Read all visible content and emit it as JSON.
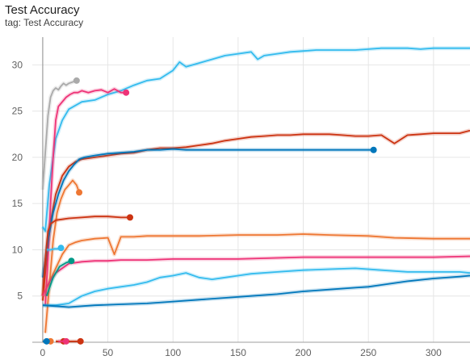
{
  "chart_data": {
    "type": "line",
    "title": "Test Accuracy",
    "subtitle": "tag: Test Accuracy",
    "xlabel": "",
    "ylabel": "",
    "xlim": [
      -8,
      328
    ],
    "ylim": [
      0,
      33
    ],
    "x_ticks": [
      0,
      50,
      100,
      150,
      200,
      250,
      300
    ],
    "y_ticks": [
      5,
      10,
      15,
      20,
      25,
      30
    ],
    "grid": true,
    "series": [
      {
        "color": "#33bbee",
        "end_marker": false,
        "x": [
          0,
          2,
          5,
          10,
          15,
          20,
          30,
          40,
          50,
          60,
          70,
          80,
          90,
          100,
          105,
          110,
          120,
          130,
          140,
          150,
          160,
          165,
          170,
          180,
          190,
          200,
          210,
          220,
          230,
          240,
          250,
          260,
          270,
          280,
          290,
          300,
          310,
          320,
          328
        ],
        "y": [
          12.5,
          12.0,
          17.0,
          22.0,
          24.0,
          25.2,
          26.0,
          26.2,
          26.8,
          27.2,
          27.8,
          28.3,
          28.5,
          29.4,
          30.3,
          29.8,
          30.2,
          30.6,
          31.0,
          31.2,
          31.4,
          30.6,
          31.0,
          31.2,
          31.4,
          31.5,
          31.6,
          31.6,
          31.6,
          31.6,
          31.7,
          31.8,
          31.8,
          31.8,
          31.7,
          31.8,
          31.8,
          31.8,
          31.8
        ]
      },
      {
        "color": "#cc3311",
        "end_marker": false,
        "x": [
          0,
          3,
          6,
          10,
          15,
          20,
          25,
          30,
          40,
          50,
          60,
          70,
          80,
          90,
          100,
          110,
          120,
          130,
          140,
          150,
          160,
          170,
          180,
          190,
          200,
          210,
          220,
          230,
          240,
          250,
          260,
          270,
          280,
          290,
          300,
          310,
          320,
          328
        ],
        "y": [
          4.5,
          9.0,
          13.0,
          16.0,
          18.0,
          19.0,
          19.5,
          19.8,
          20.0,
          20.2,
          20.4,
          20.5,
          20.8,
          21.0,
          21.0,
          21.1,
          21.3,
          21.5,
          21.8,
          22.0,
          22.2,
          22.3,
          22.4,
          22.4,
          22.5,
          22.5,
          22.5,
          22.4,
          22.3,
          22.3,
          22.4,
          21.5,
          22.4,
          22.5,
          22.6,
          22.6,
          22.6,
          22.9
        ]
      },
      {
        "color": "#aaaaaa",
        "end_marker": true,
        "x": [
          0,
          2,
          4,
          6,
          8,
          10,
          12,
          14,
          16,
          18,
          20,
          22,
          24,
          26
        ],
        "y": [
          16.5,
          20.5,
          24.5,
          26.5,
          27.2,
          27.5,
          27.3,
          27.7,
          28.0,
          27.8,
          28.0,
          28.1,
          28.2,
          28.3
        ]
      },
      {
        "color": "#ee3377",
        "end_marker": true,
        "x": [
          2,
          4,
          6,
          8,
          10,
          12,
          15,
          18,
          21,
          24,
          27,
          30,
          35,
          40,
          45,
          50,
          55,
          60,
          64
        ],
        "y": [
          4.0,
          9.0,
          15.0,
          20.0,
          24.0,
          25.5,
          26.0,
          26.5,
          26.8,
          27.0,
          27.0,
          27.2,
          27.0,
          27.2,
          27.3,
          27.0,
          27.4,
          27.0,
          27.0
        ]
      },
      {
        "color": "#0077bb",
        "end_marker": true,
        "x": [
          0,
          4,
          8,
          12,
          16,
          20,
          24,
          28,
          32,
          40,
          50,
          60,
          70,
          80,
          90,
          100,
          110,
          120,
          140,
          160,
          180,
          200,
          220,
          240,
          254
        ],
        "y": [
          7.0,
          11.0,
          14.0,
          16.0,
          17.5,
          18.5,
          19.2,
          19.8,
          20.0,
          20.2,
          20.4,
          20.5,
          20.6,
          20.8,
          20.8,
          20.9,
          20.8,
          20.8,
          20.8,
          20.8,
          20.8,
          20.8,
          20.8,
          20.8,
          20.8
        ]
      },
      {
        "color": "#ee7733",
        "end_marker": true,
        "x": [
          2,
          5,
          8,
          11,
          14,
          17,
          20,
          23,
          26,
          28
        ],
        "y": [
          1.0,
          6.0,
          11.0,
          14.0,
          15.5,
          16.5,
          17.0,
          17.5,
          17.0,
          16.2
        ]
      },
      {
        "color": "#cc3311",
        "end_marker": true,
        "x": [
          0,
          2,
          4,
          6,
          8,
          10,
          15,
          20,
          30,
          40,
          50,
          60,
          67
        ],
        "y": [
          5.0,
          9.0,
          12.0,
          12.8,
          13.0,
          13.2,
          13.3,
          13.4,
          13.5,
          13.6,
          13.6,
          13.5,
          13.5
        ]
      },
      {
        "color": "#ee7733",
        "end_marker": false,
        "x": [
          0,
          5,
          10,
          15,
          20,
          25,
          30,
          40,
          50,
          55,
          60,
          70,
          80,
          100,
          120,
          150,
          180,
          200,
          220,
          250,
          270,
          300,
          328
        ],
        "y": [
          5.0,
          6.5,
          8.0,
          9.5,
          10.5,
          10.8,
          11.0,
          11.2,
          11.3,
          9.5,
          11.4,
          11.4,
          11.5,
          11.5,
          11.5,
          11.6,
          11.6,
          11.7,
          11.6,
          11.5,
          11.3,
          11.2,
          11.2
        ]
      },
      {
        "color": "#33bbee",
        "end_marker": true,
        "x": [
          3,
          6,
          9,
          12,
          14
        ],
        "y": [
          10.0,
          10.0,
          10.1,
          10.1,
          10.2
        ]
      },
      {
        "color": "#ee3377",
        "end_marker": false,
        "x": [
          0,
          5,
          10,
          15,
          20,
          30,
          40,
          50,
          60,
          80,
          100,
          150,
          200,
          250,
          300,
          328
        ],
        "y": [
          5.0,
          6.5,
          7.5,
          8.0,
          8.5,
          8.7,
          8.8,
          8.8,
          8.9,
          8.9,
          9.0,
          9.0,
          9.2,
          9.2,
          9.2,
          9.3
        ]
      },
      {
        "color": "#009988",
        "end_marker": true,
        "x": [
          3,
          8,
          13,
          18,
          22
        ],
        "y": [
          5.0,
          7.0,
          8.2,
          8.6,
          8.8
        ]
      },
      {
        "color": "#33bbee",
        "end_marker": false,
        "x": [
          0,
          10,
          20,
          30,
          40,
          50,
          60,
          70,
          80,
          90,
          100,
          110,
          120,
          130,
          140,
          150,
          160,
          180,
          200,
          220,
          240,
          260,
          280,
          300,
          320,
          328
        ],
        "y": [
          4.0,
          4.0,
          4.2,
          5.0,
          5.5,
          5.8,
          6.0,
          6.2,
          6.5,
          7.0,
          7.2,
          7.5,
          7.0,
          6.8,
          7.0,
          7.2,
          7.4,
          7.6,
          7.8,
          7.9,
          8.0,
          7.8,
          7.6,
          7.6,
          7.6,
          7.5
        ]
      },
      {
        "color": "#0077bb",
        "end_marker": false,
        "x": [
          0,
          10,
          20,
          30,
          40,
          60,
          80,
          100,
          120,
          140,
          160,
          180,
          200,
          220,
          240,
          250,
          260,
          280,
          300,
          320,
          328
        ],
        "y": [
          4.0,
          3.9,
          3.8,
          3.9,
          4.0,
          4.1,
          4.2,
          4.4,
          4.6,
          4.8,
          5.0,
          5.2,
          5.5,
          5.7,
          5.9,
          6.0,
          6.2,
          6.6,
          6.9,
          7.1,
          7.2
        ]
      },
      {
        "color": "#ee7733",
        "end_marker": true,
        "x": [
          0,
          6
        ],
        "y": [
          0.1,
          0.1
        ]
      },
      {
        "color": "#0077bb",
        "end_marker": true,
        "x": [
          0,
          3
        ],
        "y": [
          0.1,
          0.1
        ]
      },
      {
        "color": "#cc3311",
        "end_marker": true,
        "x": [
          10,
          16
        ],
        "y": [
          0.1,
          0.1
        ]
      },
      {
        "color": "#ee3377",
        "end_marker": true,
        "x": [
          12,
          18
        ],
        "y": [
          0.1,
          0.1
        ]
      },
      {
        "color": "#cc3311",
        "end_marker": true,
        "x": [
          20,
          29
        ],
        "y": [
          0.1,
          0.1
        ]
      }
    ]
  }
}
